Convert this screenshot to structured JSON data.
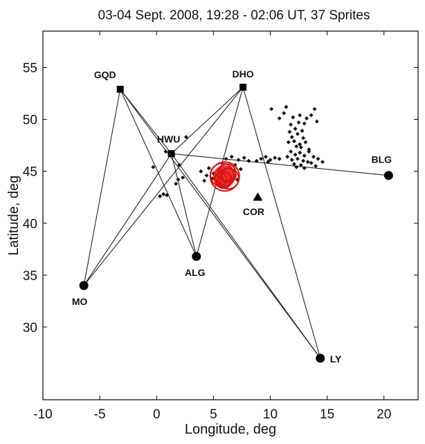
{
  "chart_data": {
    "type": "scatter",
    "title": "03-04 Sept. 2008, 19:28 - 02:06 UT, 37 Sprites",
    "xlabel": "Longitude, deg",
    "ylabel": "Latitude, deg",
    "xlim": [
      -10,
      23
    ],
    "ylim": [
      23,
      58.5
    ],
    "xticks": [
      -10,
      -5,
      0,
      5,
      10,
      15,
      20
    ],
    "yticks": [
      30,
      35,
      40,
      45,
      50,
      55
    ],
    "grid": false,
    "stations": [
      {
        "name": "GQD",
        "lon": -3.2,
        "lat": 52.9,
        "marker": "square"
      },
      {
        "name": "DHO",
        "lon": 7.6,
        "lat": 53.1,
        "marker": "square"
      },
      {
        "name": "HWU",
        "lon": 1.3,
        "lat": 46.7,
        "marker": "square"
      },
      {
        "name": "BLG",
        "lon": 20.4,
        "lat": 44.6,
        "marker": "circle"
      },
      {
        "name": "ALG",
        "lon": 3.5,
        "lat": 36.8,
        "marker": "circle"
      },
      {
        "name": "MO",
        "lon": -6.4,
        "lat": 34.0,
        "marker": "circle"
      },
      {
        "name": "LY",
        "lon": 14.4,
        "lat": 27.0,
        "marker": "circle"
      },
      {
        "name": "COR",
        "lon": 8.9,
        "lat": 42.5,
        "marker": "triangle"
      }
    ],
    "links": [
      [
        "GQD",
        "HWU"
      ],
      [
        "GQD",
        "MO"
      ],
      [
        "GQD",
        "ALG"
      ],
      [
        "GQD",
        "LY"
      ],
      [
        "DHO",
        "HWU"
      ],
      [
        "DHO",
        "ALG"
      ],
      [
        "DHO",
        "LY"
      ],
      [
        "DHO",
        "MO"
      ],
      [
        "HWU",
        "BLG"
      ],
      [
        "HWU",
        "MO"
      ],
      [
        "HWU",
        "ALG"
      ],
      [
        "HWU",
        "LY"
      ]
    ],
    "sprite_cluster_center": {
      "lon": 6.0,
      "lat": 44.5
    },
    "lightning_points": [
      [
        11.2,
        50.6
      ],
      [
        12.0,
        50.2
      ],
      [
        12.6,
        50.4
      ],
      [
        13.2,
        50.1
      ],
      [
        12.5,
        49.7
      ],
      [
        11.8,
        49.5
      ],
      [
        13.0,
        49.6
      ],
      [
        12.2,
        49.1
      ],
      [
        11.7,
        48.8
      ],
      [
        12.8,
        48.9
      ],
      [
        12.4,
        48.6
      ],
      [
        11.9,
        48.3
      ],
      [
        12.9,
        48.2
      ],
      [
        12.1,
        47.9
      ],
      [
        12.6,
        47.6
      ],
      [
        13.1,
        47.8
      ],
      [
        11.6,
        47.8
      ],
      [
        12.3,
        47.4
      ],
      [
        12.7,
        47.3
      ],
      [
        13.4,
        47.1
      ],
      [
        13.9,
        51.0
      ],
      [
        13.6,
        50.4
      ],
      [
        14.1,
        49.8
      ],
      [
        10.1,
        51.0
      ],
      [
        10.8,
        50.1
      ],
      [
        11.4,
        51.2
      ],
      [
        11.8,
        46.9
      ],
      [
        12.2,
        46.6
      ],
      [
        12.6,
        46.8
      ],
      [
        13.0,
        46.5
      ],
      [
        13.4,
        46.9
      ],
      [
        13.8,
        46.4
      ],
      [
        12.4,
        46.2
      ],
      [
        12.9,
        46.0
      ],
      [
        13.3,
        45.9
      ],
      [
        11.9,
        46.1
      ],
      [
        12.1,
        45.7
      ],
      [
        12.7,
        45.6
      ],
      [
        13.6,
        45.8
      ],
      [
        14.2,
        46.2
      ],
      [
        14.6,
        45.9
      ],
      [
        11.5,
        46.4
      ],
      [
        12.3,
        45.4
      ],
      [
        13.0,
        45.3
      ],
      [
        14.0,
        45.5
      ],
      [
        9.2,
        46.2
      ],
      [
        9.6,
        46.4
      ],
      [
        10.0,
        46.1
      ],
      [
        10.4,
        46.3
      ],
      [
        10.8,
        46.2
      ],
      [
        9.8,
        45.9
      ],
      [
        8.8,
        46.0
      ],
      [
        7.2,
        46.1
      ],
      [
        7.7,
        46.3
      ],
      [
        8.1,
        46.0
      ],
      [
        6.6,
        46.4
      ],
      [
        6.1,
        46.2
      ],
      [
        4.6,
        45.3
      ],
      [
        5.0,
        44.8
      ],
      [
        4.4,
        44.6
      ],
      [
        4.9,
        44.3
      ],
      [
        5.3,
        44.0
      ],
      [
        4.2,
        44.1
      ],
      [
        5.6,
        43.8
      ],
      [
        3.9,
        45.0
      ],
      [
        6.9,
        45.6
      ],
      [
        7.4,
        45.2
      ],
      [
        7.1,
        44.2
      ],
      [
        0.3,
        42.6
      ],
      [
        0.6,
        42.8
      ],
      [
        0.9,
        42.7
      ],
      [
        1.9,
        44.2
      ],
      [
        2.3,
        44.4
      ],
      [
        1.7,
        43.8
      ],
      [
        2.0,
        45.6
      ],
      [
        2.6,
        48.3
      ],
      [
        0.8,
        46.9
      ],
      [
        -0.3,
        45.4
      ]
    ]
  }
}
